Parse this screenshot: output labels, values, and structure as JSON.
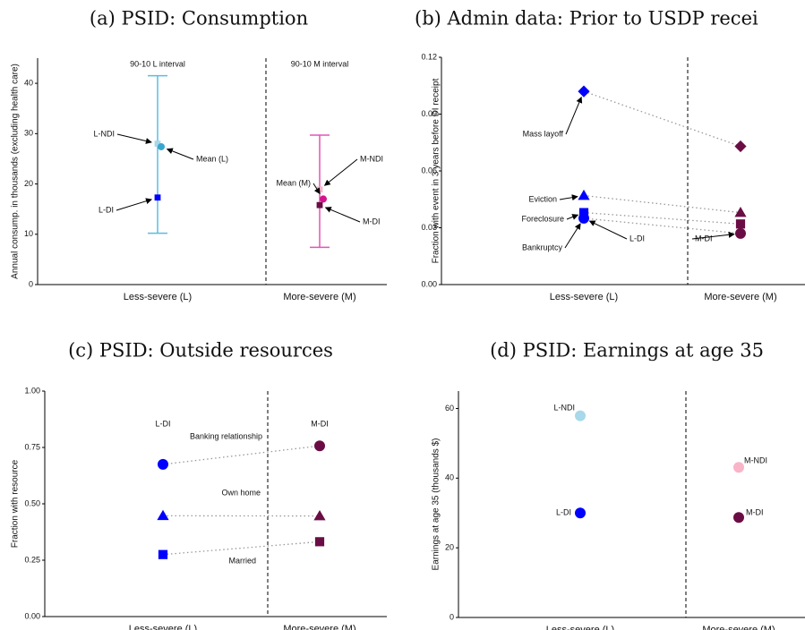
{
  "chart_data": [
    {
      "type": "interval",
      "title": "(a) PSID: Consumption",
      "ylabel": "Annual consump. in thousands (excluding health care)",
      "categories": [
        "Less-severe (L)",
        "More-severe (M)"
      ],
      "ylim": [
        0,
        45
      ],
      "yticks": [
        0,
        10,
        20,
        30,
        40
      ],
      "intervals": [
        {
          "name": "90-10 L interval",
          "color": "#5bbde0",
          "values": [
            10.2,
            41.5
          ]
        },
        {
          "name": "90-10 M interval",
          "color": "#e552b8",
          "values": [
            7.4,
            29.7
          ]
        }
      ],
      "series": [
        {
          "name": "L-NDI",
          "color": "#a8d8ea",
          "marker": "square",
          "values": [
            28,
            null
          ]
        },
        {
          "name": "Mean (L)",
          "color": "#3aa6d0",
          "marker": "circle",
          "values": [
            27.4,
            null
          ]
        },
        {
          "name": "L-DI",
          "color": "#0000ff",
          "marker": "square",
          "values": [
            17.3,
            null
          ]
        },
        {
          "name": "M-NDI",
          "color": "#f9b4c8",
          "marker": "square",
          "values": [
            null,
            18.9
          ]
        },
        {
          "name": "Mean (M)",
          "color": "#d4148c",
          "marker": "circle",
          "values": [
            null,
            17.0
          ]
        },
        {
          "name": "M-DI",
          "color": "#6b0d45",
          "marker": "square",
          "values": [
            null,
            15.8
          ]
        }
      ]
    },
    {
      "type": "dumbbell",
      "title": "(b) Admin data: Prior to USDP recei",
      "ylabel": "Fraction with event in 3 years before DI receipt",
      "categories": [
        "Less-severe (L)",
        "More-severe (M)"
      ],
      "ylim": [
        0,
        0.12
      ],
      "yticks": [
        {
          "value": 0,
          "label": "0.00"
        },
        {
          "value": 0.03,
          "label": "0.03"
        },
        {
          "value": 0.06,
          "label": "0.06"
        },
        {
          "value": 0.09,
          "label": "0.09"
        },
        {
          "value": 0.12,
          "label": "0.12"
        }
      ],
      "colors": [
        "#0000ff",
        "#6b0d45"
      ],
      "annotations": [
        "L-DI",
        "M-DI"
      ],
      "series": [
        {
          "name": "Mass layoff",
          "marker": "diamond",
          "values": [
            0.102,
            0.073
          ]
        },
        {
          "name": "Eviction",
          "marker": "triangle",
          "values": [
            0.047,
            0.038
          ]
        },
        {
          "name": "Foreclosure",
          "marker": "square",
          "values": [
            0.038,
            0.032
          ]
        },
        {
          "name": "Bankruptcy",
          "marker": "circle",
          "values": [
            0.035,
            0.027
          ]
        }
      ]
    },
    {
      "type": "dumbbell",
      "title": "(c) PSID: Outside resources",
      "ylabel": "Fraction with resource",
      "categories": [
        "Less-severe (L)",
        "More-severe (M)"
      ],
      "ylim": [
        0,
        1
      ],
      "yticks": [
        {
          "value": 0,
          "label": "0.00"
        },
        {
          "value": 0.25,
          "label": "0.25"
        },
        {
          "value": 0.5,
          "label": "0.50"
        },
        {
          "value": 0.75,
          "label": "0.75"
        },
        {
          "value": 1,
          "label": "1.00"
        }
      ],
      "colors": [
        "#0000ff",
        "#6b0d45"
      ],
      "annotations": [
        "L-DI",
        "M-DI"
      ],
      "series": [
        {
          "name": "Banking relationship",
          "marker": "circle",
          "values": [
            0.675,
            0.757
          ]
        },
        {
          "name": "Own home",
          "marker": "triangle",
          "values": [
            0.447,
            0.446
          ]
        },
        {
          "name": "Married",
          "marker": "square",
          "values": [
            0.275,
            0.332
          ]
        }
      ]
    },
    {
      "type": "dot",
      "title": "(d) PSID: Earnings at age 35",
      "ylabel": "Earnings at age 35 (thousands $)",
      "categories": [
        "Less-severe (L)",
        "More-severe (M)"
      ],
      "ylim": [
        0,
        65
      ],
      "yticks": [
        0,
        20,
        40,
        60
      ],
      "series": [
        {
          "name": "L-NDI",
          "color": "#a8d8ea",
          "marker": "circle",
          "values": [
            57.9,
            null
          ]
        },
        {
          "name": "L-DI",
          "color": "#0000ff",
          "marker": "circle",
          "values": [
            30,
            null
          ]
        },
        {
          "name": "M-NDI",
          "color": "#f9b4c8",
          "marker": "circle",
          "values": [
            null,
            43.1
          ]
        },
        {
          "name": "M-DI",
          "color": "#6b0d45",
          "marker": "circle",
          "values": [
            null,
            28.7
          ]
        }
      ]
    }
  ]
}
